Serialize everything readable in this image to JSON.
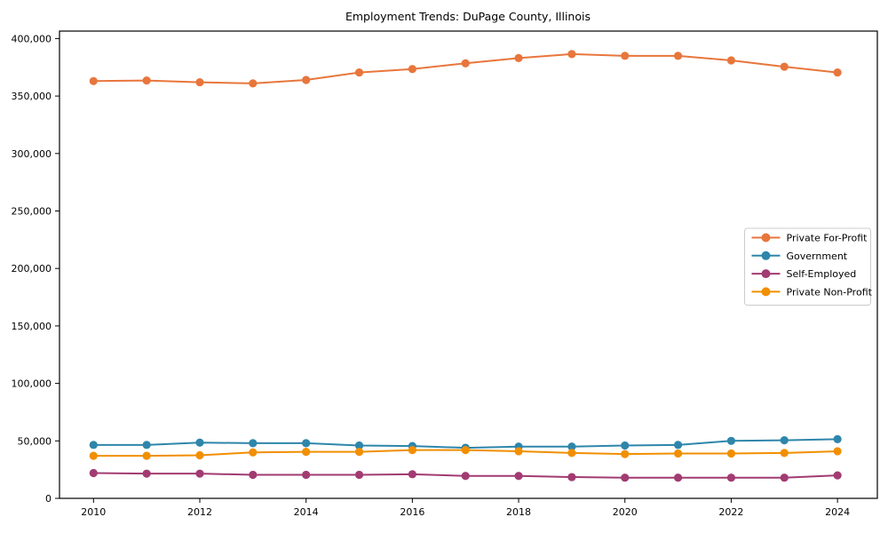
{
  "chart_data": {
    "type": "line",
    "title": "Employment Trends: DuPage County, Illinois",
    "xlabel": "",
    "ylabel": "",
    "x": [
      2010,
      2011,
      2012,
      2013,
      2014,
      2015,
      2016,
      2017,
      2018,
      2019,
      2020,
      2021,
      2022,
      2023,
      2024
    ],
    "x_ticks": [
      2010,
      2012,
      2014,
      2016,
      2018,
      2020,
      2022,
      2024
    ],
    "y_ticks": [
      0,
      50000,
      100000,
      150000,
      200000,
      250000,
      300000,
      350000,
      400000
    ],
    "xlim": [
      2009.36,
      2024.75
    ],
    "ylim": [
      0,
      406500
    ],
    "grid": false,
    "marker": "circle",
    "legend_position": "center-right",
    "background_color": "#ffffff",
    "axis_color": "#000000",
    "legend_border_color": "#cccccc",
    "series": [
      {
        "name": "Private For-Profit",
        "color": "#e8763c",
        "values": [
          363000,
          363500,
          362000,
          361000,
          364000,
          370500,
          373500,
          378500,
          383000,
          386500,
          385000,
          385000,
          381000,
          375500,
          370500
        ]
      },
      {
        "name": "Government",
        "color": "#2e86ab",
        "values": [
          46500,
          46500,
          48500,
          48000,
          48000,
          46000,
          45500,
          44000,
          45000,
          45000,
          46000,
          46500,
          50000,
          50500,
          51500
        ]
      },
      {
        "name": "Self-Employed",
        "color": "#a23b72",
        "values": [
          22000,
          21500,
          21500,
          20500,
          20500,
          20500,
          21000,
          19500,
          19500,
          18500,
          18000,
          18000,
          18000,
          18000,
          20000
        ]
      },
      {
        "name": "Private Non-Profit",
        "color": "#f18f01",
        "values": [
          37000,
          37000,
          37500,
          40000,
          40500,
          40500,
          42000,
          42000,
          41000,
          39500,
          38500,
          39000,
          39000,
          39500,
          41000
        ]
      }
    ]
  }
}
